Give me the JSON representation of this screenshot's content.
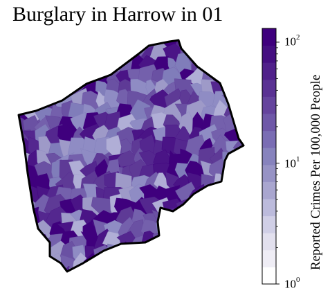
{
  "title": "Burglary in Harrow in 01",
  "map": {
    "region": "Harrow",
    "fill_palette": [
      "#3f007d",
      "#4a1486",
      "#54278f",
      "#5e3a96",
      "#6a51a3",
      "#7460ac",
      "#807dba",
      "#8f8cc4",
      "#9e9ac8",
      "#b0aed6"
    ],
    "boundary_color": "#000000"
  },
  "colorbar": {
    "label": "Reported Crimes Per 100,000 People",
    "scale": "log",
    "min": 1,
    "max": 130,
    "ticks": [
      {
        "base": "10",
        "exp": "2",
        "value": 100
      },
      {
        "base": "10",
        "exp": "1",
        "value": 10
      },
      {
        "base": "10",
        "exp": "0",
        "value": 1
      }
    ],
    "colors": [
      "#ffffff",
      "#efedf5",
      "#e2e0ee",
      "#d0cfe6",
      "#bcbbdc",
      "#a9a6cf",
      "#9793c5",
      "#8783bd",
      "#7a6db4",
      "#6f58a8",
      "#65449d",
      "#5a3293",
      "#50208a",
      "#450f81",
      "#3f007d"
    ]
  }
}
